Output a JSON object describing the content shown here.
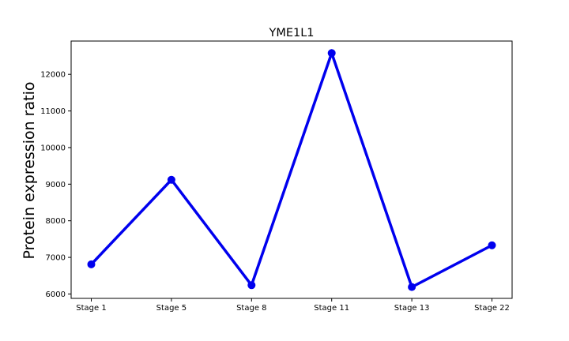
{
  "chart_data": {
    "type": "line",
    "title": "YME1L1",
    "xlabel": "",
    "ylabel": "Protein expression ratio",
    "categories": [
      "Stage 1",
      "Stage 5",
      "Stage 8",
      "Stage 11",
      "Stage 13",
      "Stage 22"
    ],
    "series": [
      {
        "values": [
          6810,
          9120,
          6240,
          12580,
          6190,
          7330
        ]
      }
    ],
    "ylim": [
      5880,
      12910
    ],
    "yticks": [
      6000,
      7000,
      8000,
      9000,
      10000,
      11000,
      12000
    ],
    "grid": false,
    "legend": "none",
    "colors": {
      "line": "#0000ee",
      "axes": "#000000",
      "background": "#ffffff"
    }
  }
}
